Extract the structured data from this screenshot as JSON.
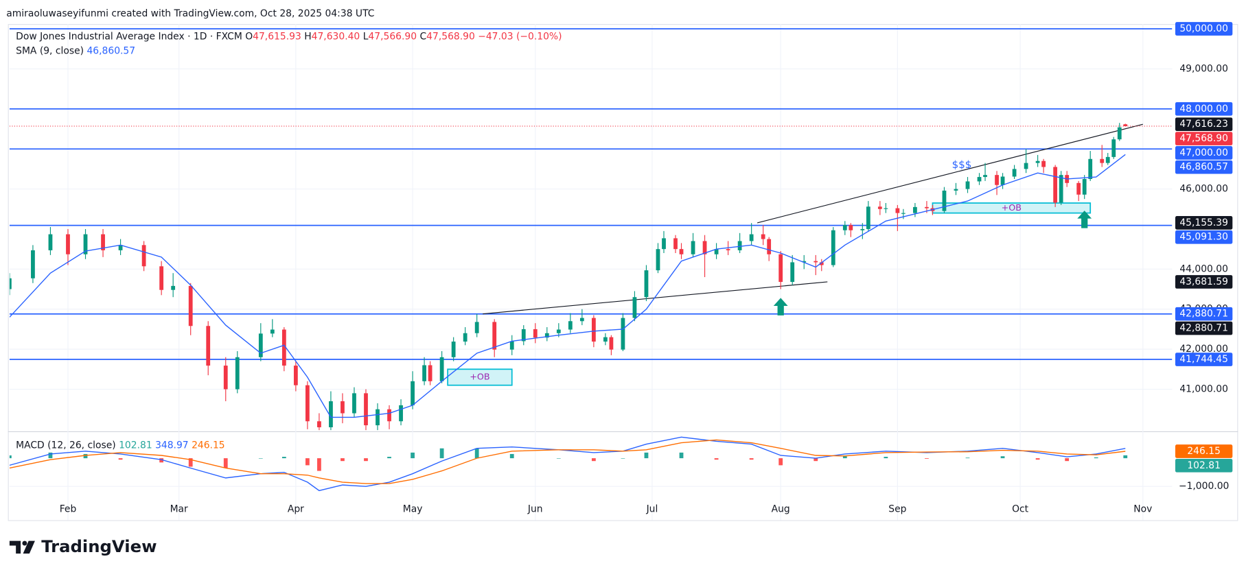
{
  "chart_data": {
    "type": "candlestick",
    "attribution": "amiraoluwaseyifunmi created with TradingView.com, Oct 28, 2025 04:38 UTC",
    "brand": "TradingView",
    "legend": {
      "title": "Dow Jones Industrial Average Index · 1D · FXCM",
      "ohlc": [
        {
          "key": "O",
          "value": 47615.93,
          "label": "47,615.93"
        },
        {
          "key": "H",
          "value": 47630.4,
          "label": "47,630.40"
        },
        {
          "key": "L",
          "value": 47566.9,
          "label": "47,566.90"
        },
        {
          "key": "C",
          "value": 47568.9,
          "label": "47,568.90"
        }
      ],
      "change": {
        "value": -47.03,
        "label": "−47.03"
      },
      "change_pct": {
        "value": -0.1,
        "label": "(−0.10%)"
      },
      "sma_name": "SMA (9, close)",
      "sma_value": {
        "value": 46860.57,
        "label": "46,860.57"
      }
    },
    "up_color": "#089981",
    "down_color": "#f23645",
    "grid": true,
    "xlim": [
      0,
      199
    ],
    "xticks": [
      {
        "value": 10,
        "label": "Feb"
      },
      {
        "value": 29,
        "label": "Mar"
      },
      {
        "value": 49,
        "label": "Apr"
      },
      {
        "value": 69,
        "label": "May"
      },
      {
        "value": 90,
        "label": "Jun"
      },
      {
        "value": 110,
        "label": "Jul"
      },
      {
        "value": 132,
        "label": "Aug"
      },
      {
        "value": 152,
        "label": "Sep"
      },
      {
        "value": 173,
        "label": "Oct"
      },
      {
        "value": 194,
        "label": "Nov"
      }
    ],
    "ylim": [
      39950,
      50120
    ],
    "yticks": [
      {
        "value": 41000,
        "label": "41,000.00"
      },
      {
        "value": 42000,
        "label": "42,000.00"
      },
      {
        "value": 43000,
        "label": "43,000.00"
      },
      {
        "value": 44000,
        "label": "44,000.00"
      },
      {
        "value": 46000,
        "label": "46,000.00"
      },
      {
        "value": 49000,
        "label": "49,000.00"
      }
    ],
    "candles": [
      [
        0,
        43500,
        43900,
        43350,
        43770
      ],
      [
        4,
        43770,
        44600,
        43650,
        44470
      ],
      [
        7,
        44470,
        45050,
        44350,
        44870
      ],
      [
        10,
        44870,
        45000,
        44100,
        44370
      ],
      [
        13,
        44370,
        45000,
        44250,
        44870
      ],
      [
        16,
        44870,
        45000,
        44300,
        44470
      ],
      [
        19,
        44470,
        44750,
        44350,
        44600
      ],
      [
        23,
        44600,
        44700,
        43950,
        44070
      ],
      [
        26,
        44070,
        44200,
        43350,
        43480
      ],
      [
        28,
        43480,
        43900,
        43300,
        43580
      ],
      [
        31,
        43580,
        43650,
        42350,
        42580
      ],
      [
        34,
        42580,
        42700,
        41350,
        41590
      ],
      [
        37,
        41590,
        41800,
        40700,
        41000
      ],
      [
        39,
        41000,
        41950,
        40900,
        41800
      ],
      [
        43,
        41800,
        42650,
        41700,
        42390
      ],
      [
        45,
        42390,
        42750,
        42300,
        42490
      ],
      [
        47,
        42490,
        42550,
        41450,
        41590
      ],
      [
        49,
        41590,
        41700,
        40950,
        41100
      ],
      [
        51,
        41100,
        41200,
        40000,
        40200
      ],
      [
        53,
        40200,
        40400,
        39980,
        40050
      ],
      [
        55,
        40050,
        40950,
        39980,
        40700
      ],
      [
        57,
        40700,
        40900,
        40150,
        40400
      ],
      [
        59,
        40400,
        41050,
        40300,
        40900
      ],
      [
        61,
        40900,
        41000,
        39980,
        40100
      ],
      [
        63,
        40100,
        40650,
        39980,
        40500
      ],
      [
        65,
        40500,
        40600,
        40000,
        40200
      ],
      [
        67,
        40200,
        40750,
        40100,
        40600
      ],
      [
        69,
        40600,
        41450,
        40500,
        41200
      ],
      [
        71,
        41200,
        41800,
        41100,
        41600
      ],
      [
        72,
        41600,
        41700,
        41100,
        41200
      ],
      [
        74,
        41200,
        41950,
        41150,
        41800
      ],
      [
        76,
        41800,
        42300,
        41700,
        42190
      ],
      [
        78,
        42190,
        42550,
        42100,
        42400
      ],
      [
        80,
        42400,
        42880,
        42300,
        42680
      ],
      [
        83,
        42680,
        42750,
        41800,
        41990
      ],
      [
        86,
        41990,
        42350,
        41850,
        42200
      ],
      [
        88,
        42200,
        42600,
        42100,
        42500
      ],
      [
        90,
        42500,
        42650,
        42150,
        42290
      ],
      [
        92,
        42290,
        42550,
        42200,
        42400
      ],
      [
        94,
        42400,
        42650,
        42300,
        42490
      ],
      [
        96,
        42490,
        42900,
        42400,
        42700
      ],
      [
        98,
        42700,
        43000,
        42600,
        42780
      ],
      [
        100,
        42780,
        42850,
        42050,
        42190
      ],
      [
        102,
        42190,
        42400,
        42100,
        42300
      ],
      [
        103,
        42300,
        42350,
        41850,
        41990
      ],
      [
        105,
        41990,
        42900,
        41950,
        42780
      ],
      [
        107,
        42780,
        43450,
        42700,
        43300
      ],
      [
        109,
        43300,
        44100,
        43200,
        43970
      ],
      [
        111,
        43970,
        44650,
        43900,
        44500
      ],
      [
        112,
        44500,
        44950,
        44400,
        44770
      ],
      [
        114,
        44770,
        44850,
        44400,
        44500
      ],
      [
        115,
        44500,
        44650,
        44250,
        44370
      ],
      [
        117,
        44370,
        44900,
        44300,
        44700
      ],
      [
        119,
        44700,
        44850,
        43800,
        44370
      ],
      [
        121,
        44370,
        44650,
        44250,
        44500
      ],
      [
        123,
        44500,
        44700,
        44350,
        44470
      ],
      [
        125,
        44470,
        44900,
        44400,
        44700
      ],
      [
        127,
        44700,
        45150,
        44600,
        44870
      ],
      [
        129,
        44870,
        45100,
        44600,
        44750
      ],
      [
        130,
        44750,
        44800,
        44200,
        44370
      ],
      [
        132,
        44370,
        44450,
        43500,
        43680
      ],
      [
        134,
        43680,
        44350,
        43600,
        44170
      ],
      [
        136,
        44170,
        44350,
        44000,
        44200
      ],
      [
        138,
        44200,
        44350,
        43850,
        44170
      ],
      [
        139,
        44170,
        44250,
        43950,
        44100
      ],
      [
        141,
        44100,
        45050,
        44050,
        44970
      ],
      [
        143,
        44970,
        45200,
        44850,
        45100
      ],
      [
        144,
        45100,
        45150,
        44800,
        44970
      ],
      [
        146,
        44970,
        45150,
        44750,
        45000
      ],
      [
        147,
        45000,
        45700,
        44950,
        45560
      ],
      [
        149,
        45560,
        45700,
        45350,
        45500
      ],
      [
        150,
        45500,
        45650,
        45400,
        45520
      ],
      [
        152,
        45520,
        45600,
        44950,
        45400
      ],
      [
        153,
        45400,
        45500,
        45250,
        45400
      ],
      [
        155,
        45400,
        45650,
        45300,
        45550
      ],
      [
        157,
        45550,
        45700,
        45400,
        45520
      ],
      [
        158,
        45520,
        45600,
        45350,
        45450
      ],
      [
        160,
        45450,
        46050,
        45400,
        45960
      ],
      [
        162,
        45960,
        46150,
        45850,
        46000
      ],
      [
        164,
        46000,
        46300,
        45900,
        46190
      ],
      [
        166,
        46190,
        46400,
        46100,
        46300
      ],
      [
        167,
        46300,
        46650,
        46200,
        46350
      ],
      [
        169,
        46350,
        46450,
        45850,
        46100
      ],
      [
        170,
        46100,
        46400,
        46000,
        46310
      ],
      [
        172,
        46310,
        46600,
        46250,
        46500
      ],
      [
        174,
        46500,
        47000,
        46400,
        46650
      ],
      [
        176,
        46650,
        46850,
        46550,
        46700
      ],
      [
        177,
        46700,
        46750,
        46400,
        46550
      ],
      [
        179,
        46550,
        46600,
        45550,
        45660
      ],
      [
        180,
        45660,
        46450,
        45600,
        46350
      ],
      [
        181,
        46350,
        46450,
        46050,
        46150
      ],
      [
        183,
        46150,
        46200,
        45700,
        45860
      ],
      [
        184,
        45860,
        46350,
        45750,
        46250
      ],
      [
        185,
        46250,
        46950,
        46200,
        46750
      ],
      [
        187,
        46750,
        47100,
        46550,
        46650
      ],
      [
        188,
        46650,
        46900,
        46600,
        46800
      ],
      [
        189,
        46800,
        47300,
        46750,
        47240
      ],
      [
        190,
        47240,
        47650,
        47200,
        47540
      ],
      [
        191,
        47615.93,
        47630.4,
        47566.9,
        47568.9
      ]
    ],
    "sma": {
      "color": "#2962ff",
      "points": [
        [
          0,
          42800
        ],
        [
          7,
          43900
        ],
        [
          13,
          44450
        ],
        [
          19,
          44600
        ],
        [
          26,
          44300
        ],
        [
          31,
          43600
        ],
        [
          37,
          42600
        ],
        [
          43,
          41900
        ],
        [
          47,
          42100
        ],
        [
          51,
          41300
        ],
        [
          55,
          40300
        ],
        [
          59,
          40300
        ],
        [
          65,
          40400
        ],
        [
          69,
          40600
        ],
        [
          74,
          41200
        ],
        [
          80,
          41900
        ],
        [
          86,
          42200
        ],
        [
          94,
          42350
        ],
        [
          100,
          42450
        ],
        [
          105,
          42500
        ],
        [
          109,
          43000
        ],
        [
          115,
          44200
        ],
        [
          121,
          44500
        ],
        [
          127,
          44600
        ],
        [
          132,
          44400
        ],
        [
          138,
          44050
        ],
        [
          143,
          44600
        ],
        [
          150,
          45200
        ],
        [
          157,
          45450
        ],
        [
          164,
          45700
        ],
        [
          170,
          46100
        ],
        [
          176,
          46400
        ],
        [
          181,
          46250
        ],
        [
          186,
          46300
        ],
        [
          191,
          46860.57
        ]
      ]
    },
    "levels": {
      "color": "#2962ff",
      "values": [
        50000,
        48000,
        47000,
        45091.3,
        42880.71,
        41744.45
      ]
    },
    "trendlines": [
      {
        "x": [
          81,
          140
        ],
        "y": [
          42880.71,
          43681.59
        ]
      },
      {
        "x": [
          128,
          194
        ],
        "y": [
          45155.39,
          47616.23
        ]
      }
    ],
    "order_blocks": [
      {
        "label": "+OB",
        "x": [
          75,
          86
        ],
        "y": [
          41500,
          41100
        ]
      },
      {
        "label": "+OB",
        "x": [
          158,
          185
        ],
        "y": [
          45650,
          45400
        ]
      }
    ],
    "arrows": [
      {
        "x": 132,
        "y": 43280
      },
      {
        "x": 184,
        "y": 45460
      }
    ],
    "annotations": [
      {
        "text": "$$$",
        "x": 163,
        "y": 46600
      }
    ],
    "price_labels": [
      {
        "value": 50000,
        "label": "50,000.00",
        "color": "#2962ff"
      },
      {
        "value": 48000,
        "label": "48,000.00",
        "color": "#2962ff"
      },
      {
        "value": 47616.23,
        "label": "47,616.23",
        "color": "#131722"
      },
      {
        "value": 47568.9,
        "label": "47,568.90",
        "color": "#f23645"
      },
      {
        "value": 47000,
        "label": "47,000.00",
        "color": "#2962ff"
      },
      {
        "value": 46860.57,
        "label": "46,860.57",
        "color": "#2962ff"
      },
      {
        "value": 45155.39,
        "label": "45,155.39",
        "color": "#131722"
      },
      {
        "value": 45091.3,
        "label": "45,091.30",
        "color": "#2962ff"
      },
      {
        "value": 43681.59,
        "label": "43,681.59",
        "color": "#131722"
      },
      {
        "value": 42880.71,
        "label": "42,880.71",
        "color": "#2962ff"
      },
      {
        "value": 42880.71,
        "label": "42,880.71",
        "color": "#131722"
      },
      {
        "value": 41744.45,
        "label": "41,744.45",
        "color": "#2962ff"
      }
    ],
    "macd": {
      "title": "MACD (12, 26, close)",
      "macd_color": "#2962ff",
      "signal_color": "#ff6d00",
      "hist_up_color": "#26a69a",
      "hist_down_color": "#ff5252",
      "ylim": [
        -2200,
        900
      ],
      "yticks": [
        {
          "value": -1000,
          "label": "−1,000.00"
        }
      ],
      "rows": [
        [
          0,
          -250,
          -350,
          100
        ],
        [
          7,
          150,
          -50,
          200
        ],
        [
          13,
          250,
          100,
          150
        ],
        [
          19,
          150,
          200,
          -50
        ],
        [
          26,
          -50,
          100,
          -150
        ],
        [
          31,
          -350,
          -50,
          -300
        ],
        [
          37,
          -700,
          -350,
          -350
        ],
        [
          43,
          -550,
          -550,
          0
        ],
        [
          47,
          -500,
          -550,
          50
        ],
        [
          51,
          -850,
          -600,
          -250
        ],
        [
          53,
          -1150,
          -700,
          -450
        ],
        [
          57,
          -950,
          -850,
          -100
        ],
        [
          61,
          -1000,
          -900,
          -100
        ],
        [
          65,
          -850,
          -900,
          50
        ],
        [
          69,
          -550,
          -750,
          200
        ],
        [
          74,
          -100,
          -450,
          350
        ],
        [
          80,
          350,
          0,
          350
        ],
        [
          86,
          400,
          250,
          150
        ],
        [
          94,
          300,
          300,
          0
        ],
        [
          100,
          200,
          300,
          -100
        ],
        [
          105,
          250,
          250,
          0
        ],
        [
          109,
          500,
          300,
          200
        ],
        [
          115,
          750,
          550,
          200
        ],
        [
          121,
          600,
          650,
          -50
        ],
        [
          127,
          500,
          550,
          -50
        ],
        [
          132,
          100,
          350,
          -250
        ],
        [
          138,
          0,
          100,
          -100
        ],
        [
          143,
          150,
          80,
          70
        ],
        [
          150,
          250,
          200,
          50
        ],
        [
          157,
          200,
          220,
          -20
        ],
        [
          164,
          250,
          230,
          20
        ],
        [
          170,
          350,
          280,
          70
        ],
        [
          176,
          200,
          250,
          -50
        ],
        [
          181,
          50,
          150,
          -100
        ],
        [
          186,
          150,
          120,
          30
        ],
        [
          191,
          348.97,
          246.15,
          102.81
        ]
      ]
    }
  }
}
